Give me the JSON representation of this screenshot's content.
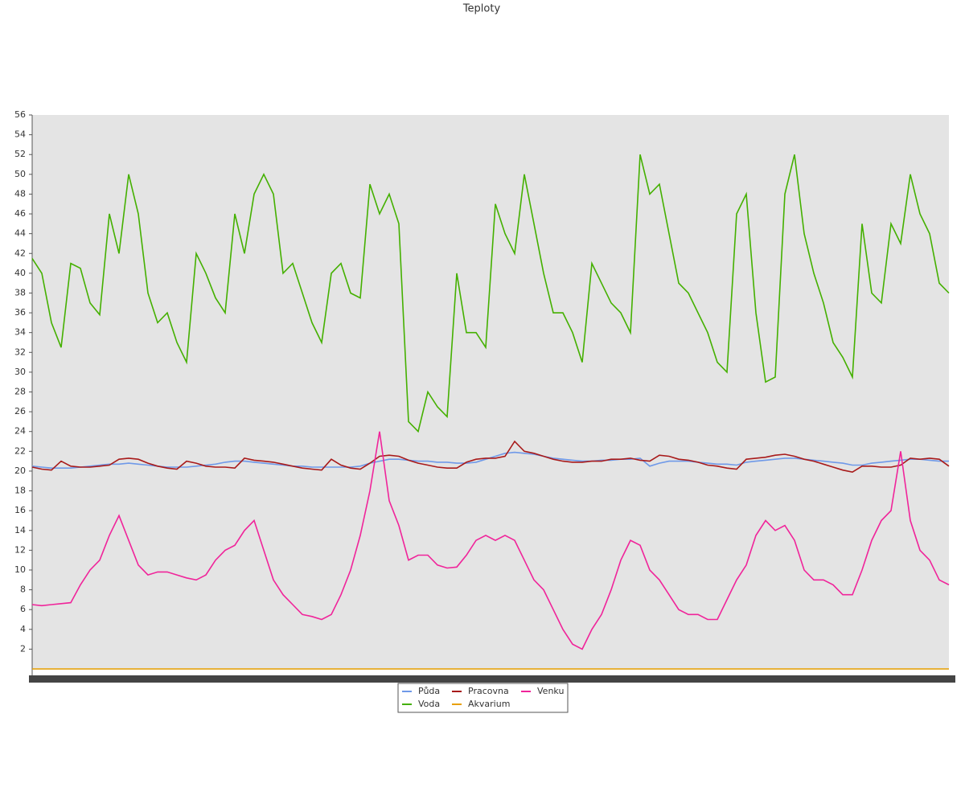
{
  "chart_data": {
    "type": "line",
    "title": "Teploty",
    "ylim": [
      0,
      56
    ],
    "yticks": [
      2,
      4,
      6,
      8,
      10,
      12,
      14,
      16,
      18,
      20,
      22,
      24,
      26,
      28,
      30,
      32,
      34,
      36,
      38,
      40,
      42,
      44,
      46,
      48,
      50,
      52,
      54,
      56
    ],
    "legend": "bottom",
    "series": [
      {
        "name": "Půda",
        "color": "#6f99e8",
        "values": [
          20.5,
          20.4,
          20.3,
          20.3,
          20.3,
          20.4,
          20.5,
          20.6,
          20.7,
          20.7,
          20.8,
          20.7,
          20.6,
          20.5,
          20.4,
          20.4,
          20.4,
          20.5,
          20.6,
          20.7,
          20.9,
          21,
          21,
          20.9,
          20.8,
          20.7,
          20.6,
          20.5,
          20.5,
          20.4,
          20.4,
          20.4,
          20.4,
          20.4,
          20.5,
          20.8,
          21,
          21.2,
          21.2,
          21.1,
          21,
          21,
          20.9,
          20.9,
          20.8,
          20.8,
          20.9,
          21.2,
          21.5,
          21.8,
          21.9,
          21.8,
          21.7,
          21.5,
          21.3,
          21.2,
          21.1,
          21,
          21,
          21.1,
          21.1,
          21.2,
          21.2,
          21.3,
          20.5,
          20.8,
          21,
          21,
          21,
          20.9,
          20.8,
          20.7,
          20.7,
          20.6,
          20.9,
          21,
          21.1,
          21.2,
          21.3,
          21.3,
          21.2,
          21.1,
          21,
          20.9,
          20.8,
          20.6,
          20.6,
          20.8,
          20.9,
          21,
          21.1,
          21.2,
          21.2,
          21.1,
          21,
          21
        ]
      },
      {
        "name": "Voda",
        "color": "#44b000",
        "values": [
          41.5,
          40,
          35,
          32.5,
          41,
          40.5,
          37,
          35.8,
          46,
          42,
          50,
          46,
          38,
          35,
          36,
          33,
          31,
          42,
          40,
          37.5,
          36,
          46,
          42,
          48,
          50,
          48,
          40,
          41,
          38,
          35,
          33,
          40,
          41,
          38,
          37.5,
          49,
          46,
          48,
          45,
          25,
          24,
          28,
          26.5,
          25.5,
          40,
          34,
          34,
          32.5,
          47,
          44,
          42,
          50,
          45,
          40,
          36,
          36,
          34,
          31,
          41,
          39,
          37,
          36,
          34,
          52,
          48,
          49,
          44,
          39,
          38,
          36,
          34,
          31,
          30,
          46,
          48,
          36,
          29,
          29.5,
          48,
          52,
          44,
          40,
          37,
          33,
          31.5,
          29.5,
          45,
          38,
          37,
          45,
          43,
          50,
          46,
          44,
          39,
          38
        ]
      },
      {
        "name": "Pracovna",
        "color": "#a81a1a",
        "values": [
          20.4,
          20.2,
          20.1,
          21,
          20.5,
          20.4,
          20.4,
          20.5,
          20.6,
          21.2,
          21.3,
          21.2,
          20.8,
          20.5,
          20.3,
          20.2,
          21,
          20.8,
          20.5,
          20.4,
          20.4,
          20.3,
          21.3,
          21.1,
          21,
          20.9,
          20.7,
          20.5,
          20.3,
          20.2,
          20.1,
          21.2,
          20.6,
          20.3,
          20.2,
          20.8,
          21.5,
          21.6,
          21.5,
          21.1,
          20.8,
          20.6,
          20.4,
          20.3,
          20.3,
          20.9,
          21.2,
          21.3,
          21.3,
          21.5,
          23,
          22,
          21.8,
          21.5,
          21.2,
          21,
          20.9,
          20.9,
          21,
          21,
          21.2,
          21.2,
          21.3,
          21.1,
          21,
          21.6,
          21.5,
          21.2,
          21.1,
          20.9,
          20.6,
          20.5,
          20.3,
          20.2,
          21.2,
          21.3,
          21.4,
          21.6,
          21.7,
          21.5,
          21.2,
          21,
          20.7,
          20.4,
          20.1,
          19.9,
          20.5,
          20.5,
          20.4,
          20.4,
          20.6,
          21.3,
          21.2,
          21.3,
          21.2,
          20.5
        ]
      },
      {
        "name": "Akvarium",
        "color": "#e8a000",
        "values": [
          0,
          0,
          0,
          0,
          0,
          0,
          0,
          0,
          0,
          0,
          0,
          0,
          0,
          0,
          0,
          0,
          0,
          0,
          0,
          0,
          0,
          0,
          0,
          0,
          0,
          0,
          0,
          0,
          0,
          0,
          0,
          0,
          0,
          0,
          0,
          0,
          0,
          0,
          0,
          0,
          0,
          0,
          0,
          0,
          0,
          0,
          0,
          0,
          0,
          0,
          0,
          0,
          0,
          0,
          0,
          0,
          0,
          0,
          0,
          0,
          0,
          0,
          0,
          0,
          0,
          0,
          0,
          0,
          0,
          0,
          0,
          0,
          0,
          0,
          0,
          0,
          0,
          0,
          0,
          0,
          0,
          0,
          0,
          0,
          0,
          0,
          0,
          0,
          0,
          0,
          0,
          0,
          0,
          0,
          0,
          0
        ]
      },
      {
        "name": "Venku",
        "color": "#f0249a",
        "values": [
          6.5,
          6.4,
          6.5,
          6.6,
          6.7,
          8.5,
          10,
          11,
          13.5,
          15.5,
          13,
          10.5,
          9.5,
          9.8,
          9.8,
          9.5,
          9.2,
          9,
          9.5,
          11,
          12,
          12.5,
          14,
          15,
          12,
          9,
          7.5,
          6.5,
          5.5,
          5.3,
          5,
          5.5,
          7.5,
          10,
          13.5,
          18,
          24,
          17,
          14.5,
          11,
          11.5,
          11.5,
          10.5,
          10.2,
          10.3,
          11.5,
          13,
          13.5,
          13,
          13.5,
          13,
          11,
          9,
          8,
          6,
          4,
          2.5,
          2,
          4,
          5.5,
          8,
          11,
          13,
          12.5,
          10,
          9,
          7.5,
          6,
          5.5,
          5.5,
          5,
          5,
          7,
          9,
          10.5,
          13.5,
          15,
          14,
          14.5,
          13,
          10,
          9,
          9,
          8.5,
          7.5,
          7.5,
          10,
          13,
          15,
          16,
          22,
          15,
          12,
          11,
          9,
          8.5
        ]
      }
    ]
  }
}
